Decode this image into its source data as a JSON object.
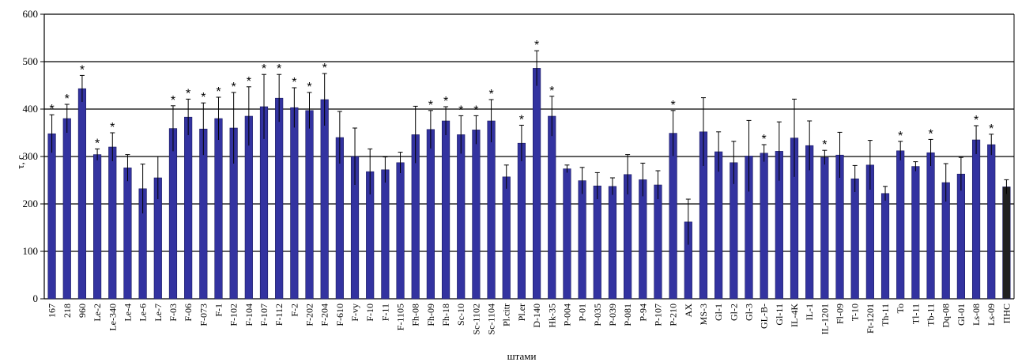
{
  "chart_data": {
    "type": "bar",
    "xlabel": "штами",
    "ylabel": "τ, с",
    "ylim": [
      0,
      600
    ],
    "yticks": [
      0,
      100,
      200,
      300,
      400,
      500,
      600
    ],
    "grid": true,
    "significance_marker": "*",
    "bar_color": "#3333a0",
    "categories": [
      "167",
      "218",
      "960",
      "Le-2",
      "Le-340",
      "Le-4",
      "Le-6",
      "Le-7",
      "F-03",
      "F-06",
      "F-073",
      "F-1",
      "F-102",
      "F-104",
      "F-107",
      "F-112",
      "F-2",
      "F-202",
      "F-204",
      "F-610",
      "F-vy",
      "F-10",
      "F-11",
      "F-1105",
      "Fh-08",
      "Fh-09",
      "Fh-18",
      "Sc-10",
      "Sc-1102",
      "Sc-1104",
      "Pl.citr",
      "Pl.er",
      "D-140",
      "Hk-35",
      "P-004",
      "P-01",
      "P-035",
      "P-039",
      "P-081",
      "P-94",
      "P-107",
      "P-210",
      "AX",
      "MS-3",
      "Gl-1",
      "Gl-2",
      "Gl-3",
      "GL-B-",
      "Gl-11",
      "IL-4K",
      "IL-1",
      "IL-1201",
      "Fl-09",
      "T-10",
      "Ft-1201",
      "Th-11",
      "To",
      "Tl-11",
      "Tb-11",
      "Dq-08",
      "Gl-01",
      "Ls-08",
      "Ls-09",
      "ПНС"
    ],
    "values": [
      348,
      380,
      443,
      304,
      320,
      276,
      232,
      255,
      359,
      383,
      358,
      380,
      360,
      385,
      405,
      423,
      403,
      397,
      420,
      340,
      300,
      268,
      272,
      287,
      346,
      357,
      375,
      346,
      356,
      375,
      257,
      328,
      486,
      385,
      274,
      249,
      238,
      237,
      262,
      251,
      240,
      349,
      162,
      352,
      310,
      287,
      301,
      307,
      311,
      339,
      323,
      298,
      303,
      253,
      282,
      222,
      312,
      279,
      308,
      245,
      263,
      335,
      325,
      236
    ],
    "errors": [
      40,
      30,
      28,
      12,
      30,
      28,
      52,
      45,
      48,
      38,
      55,
      45,
      75,
      62,
      68,
      50,
      42,
      38,
      55,
      55,
      60,
      48,
      27,
      22,
      60,
      40,
      30,
      40,
      30,
      45,
      25,
      38,
      37,
      42,
      8,
      28,
      28,
      18,
      42,
      35,
      30,
      48,
      48,
      72,
      42,
      45,
      75,
      18,
      62,
      82,
      52,
      15,
      48,
      28,
      52,
      15,
      20,
      10,
      28,
      40,
      35,
      30,
      22,
      15
    ],
    "significant": [
      true,
      true,
      true,
      true,
      true,
      false,
      false,
      false,
      true,
      true,
      true,
      true,
      true,
      true,
      true,
      true,
      true,
      true,
      true,
      false,
      false,
      false,
      false,
      false,
      false,
      true,
      true,
      true,
      true,
      true,
      false,
      true,
      true,
      true,
      false,
      false,
      false,
      false,
      false,
      false,
      false,
      true,
      false,
      false,
      false,
      false,
      false,
      true,
      false,
      false,
      false,
      true,
      false,
      false,
      false,
      false,
      true,
      false,
      true,
      false,
      false,
      true,
      true,
      false
    ],
    "highlighted": [
      "ПНС"
    ],
    "highlight_color": "#202020"
  }
}
